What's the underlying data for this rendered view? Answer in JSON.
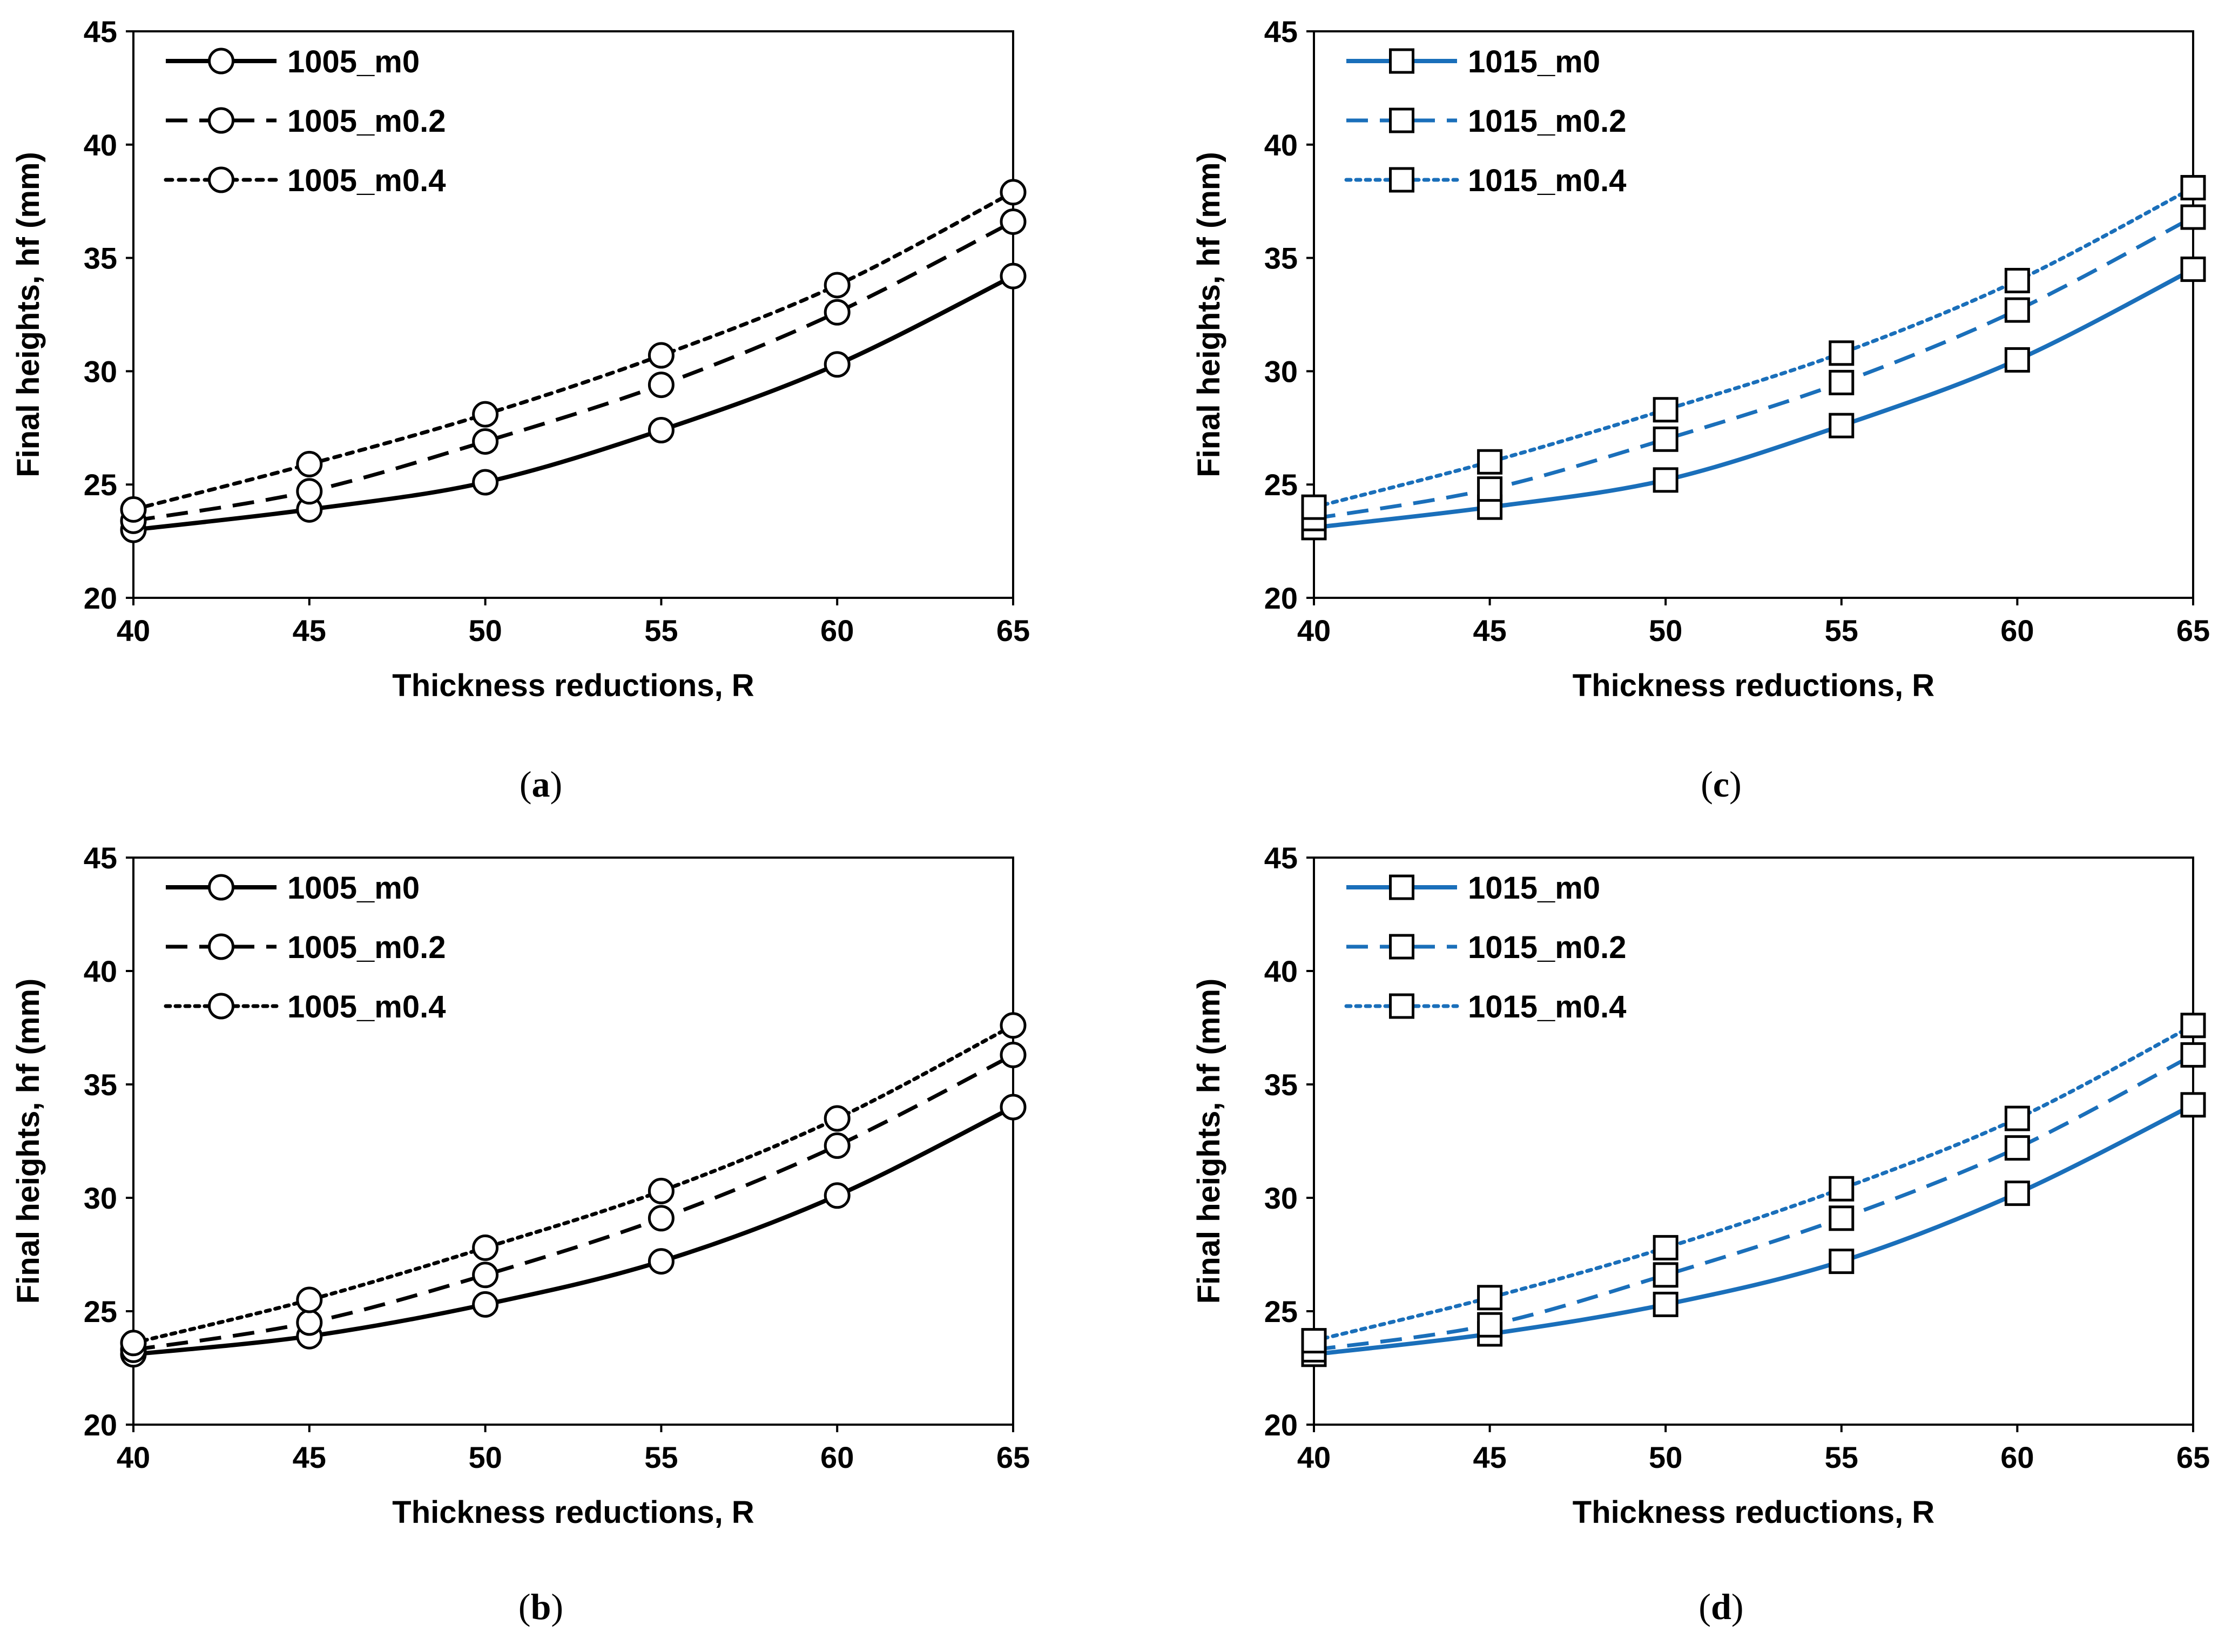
{
  "chart_data": [
    {
      "type": "line",
      "panel": "(a)",
      "caption_letter": "a",
      "color": "#000000",
      "marker": "circle",
      "xlabel": "Thickness reductions, R",
      "ylabel": "Final heights, hf (mm)",
      "xlim": [
        40,
        65
      ],
      "ylim": [
        20,
        45
      ],
      "xticks": [
        40,
        45,
        50,
        55,
        60,
        65
      ],
      "yticks": [
        20,
        25,
        30,
        35,
        40,
        45
      ],
      "grid": false,
      "legend_position": "top-left",
      "x": [
        40,
        45,
        50,
        55,
        60,
        65
      ],
      "series": [
        {
          "name": "1005_m0",
          "line_style": "solid",
          "values": [
            23.0,
            23.9,
            25.1,
            27.4,
            30.3,
            34.2
          ]
        },
        {
          "name": "1005_m0.2",
          "line_style": "dashed",
          "values": [
            23.4,
            24.7,
            26.9,
            29.4,
            32.6,
            36.6
          ]
        },
        {
          "name": "1005_m0.4",
          "line_style": "dotted",
          "values": [
            23.9,
            25.9,
            28.1,
            30.7,
            33.8,
            37.9
          ]
        }
      ]
    },
    {
      "type": "line",
      "panel": "(b)",
      "caption_letter": "b",
      "color": "#000000",
      "marker": "circle",
      "xlabel": "Thickness reductions, R",
      "ylabel": "Final heights, hf (mm)",
      "xlim": [
        40,
        65
      ],
      "ylim": [
        20,
        45
      ],
      "xticks": [
        40,
        45,
        50,
        55,
        60,
        65
      ],
      "yticks": [
        20,
        25,
        30,
        35,
        40,
        45
      ],
      "grid": false,
      "legend_position": "top-left",
      "x": [
        40,
        45,
        50,
        55,
        60,
        65
      ],
      "series": [
        {
          "name": "1005_m0",
          "line_style": "solid",
          "values": [
            23.1,
            23.9,
            25.3,
            27.2,
            30.1,
            34.0
          ]
        },
        {
          "name": "1005_m0.2",
          "line_style": "dashed",
          "values": [
            23.3,
            24.5,
            26.6,
            29.1,
            32.3,
            36.3
          ]
        },
        {
          "name": "1005_m0.4",
          "line_style": "dotted-fine",
          "values": [
            23.6,
            25.5,
            27.8,
            30.3,
            33.5,
            37.6
          ]
        }
      ]
    },
    {
      "type": "line",
      "panel": "(c)",
      "caption_letter": "c",
      "color": "#1a6fba",
      "marker": "square",
      "xlabel": "Thickness reductions, R",
      "ylabel": "Final heights, hf (mm)",
      "xlim": [
        40,
        65
      ],
      "ylim": [
        20,
        45
      ],
      "xticks": [
        40,
        45,
        50,
        55,
        60,
        65
      ],
      "yticks": [
        20,
        25,
        30,
        35,
        40,
        45
      ],
      "grid": false,
      "legend_position": "top-left",
      "x": [
        40,
        45,
        50,
        55,
        60,
        65
      ],
      "series": [
        {
          "name": "1015_m0",
          "line_style": "solid",
          "values": [
            23.1,
            24.0,
            25.2,
            27.6,
            30.5,
            34.5
          ]
        },
        {
          "name": "1015_m0.2",
          "line_style": "dashed",
          "values": [
            23.5,
            24.8,
            27.0,
            29.5,
            32.7,
            36.8
          ]
        },
        {
          "name": "1015_m0.4",
          "line_style": "dotted-fine",
          "values": [
            24.0,
            26.0,
            28.3,
            30.8,
            34.0,
            38.1
          ]
        }
      ]
    },
    {
      "type": "line",
      "panel": "(d)",
      "caption_letter": "d",
      "color": "#1a6fba",
      "marker": "square",
      "xlabel": "Thickness reductions, R",
      "ylabel": "Final heights, hf (mm)",
      "xlim": [
        40,
        65
      ],
      "ylim": [
        20,
        45
      ],
      "xticks": [
        40,
        45,
        50,
        55,
        60,
        65
      ],
      "yticks": [
        20,
        25,
        30,
        35,
        40,
        45
      ],
      "grid": false,
      "legend_position": "top-left",
      "x": [
        40,
        45,
        50,
        55,
        60,
        65
      ],
      "series": [
        {
          "name": "1015_m0",
          "line_style": "solid",
          "values": [
            23.1,
            24.0,
            25.3,
            27.2,
            30.2,
            34.1
          ]
        },
        {
          "name": "1015_m0.2",
          "line_style": "dashed",
          "values": [
            23.3,
            24.4,
            26.6,
            29.1,
            32.2,
            36.3
          ]
        },
        {
          "name": "1015_m0.4",
          "line_style": "dotted-fine",
          "values": [
            23.7,
            25.6,
            27.8,
            30.4,
            33.5,
            37.6
          ]
        }
      ]
    }
  ]
}
